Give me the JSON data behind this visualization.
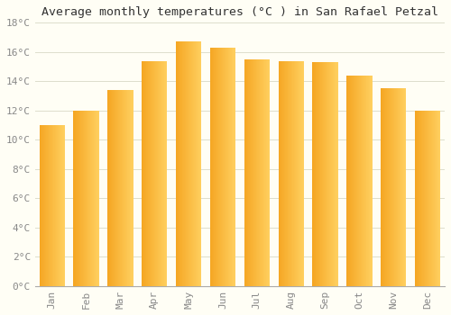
{
  "months": [
    "Jan",
    "Feb",
    "Mar",
    "Apr",
    "May",
    "Jun",
    "Jul",
    "Aug",
    "Sep",
    "Oct",
    "Nov",
    "Dec"
  ],
  "temperatures": [
    11.0,
    12.0,
    13.4,
    15.4,
    16.7,
    16.3,
    15.5,
    15.4,
    15.3,
    14.4,
    13.5,
    12.0
  ],
  "bar_color_left": "#F5A623",
  "bar_color_right": "#FFD966",
  "title": "Average monthly temperatures (°C ) in San Rafael Petzal",
  "ylim": [
    0,
    18
  ],
  "ytick_step": 2,
  "background_color": "#FFFEF5",
  "grid_color": "#DDDDCC",
  "title_fontsize": 9.5,
  "tick_fontsize": 8,
  "font_family": "monospace",
  "tick_color": "#888888",
  "spine_color": "#AAAAAA"
}
